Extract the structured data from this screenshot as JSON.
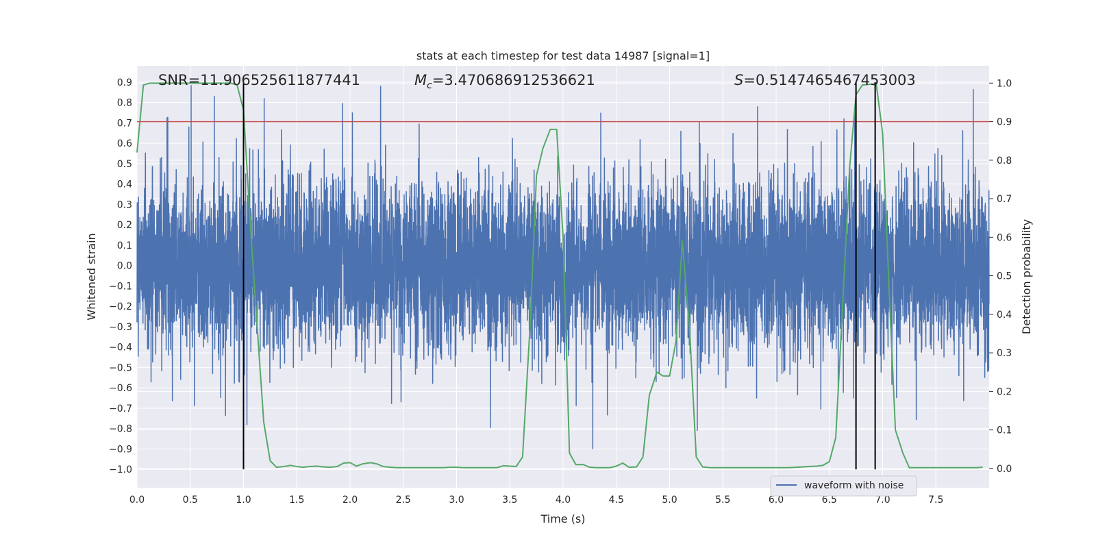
{
  "chart_data": {
    "type": "line",
    "title": "stats at each timestep for test data 14987 [signal=1]",
    "xlabel": "Time (s)",
    "ylabel_left": "Whitened strain",
    "ylabel_right": "Detection probability",
    "xlim": [
      0.0,
      8.0
    ],
    "ylim_left": [
      -1.09,
      0.98
    ],
    "ylim_right": [
      -0.05,
      1.045
    ],
    "x_ticks": [
      "0.0",
      "0.5",
      "1.0",
      "1.5",
      "2.0",
      "2.5",
      "3.0",
      "3.5",
      "4.0",
      "4.5",
      "5.0",
      "5.5",
      "6.0",
      "6.5",
      "7.0",
      "7.5"
    ],
    "y_left_ticks": [
      "0.9",
      "0.8",
      "0.7",
      "0.6",
      "0.5",
      "0.4",
      "0.3",
      "0.2",
      "0.1",
      "0.0",
      "−0.1",
      "−0.2",
      "−0.3",
      "−0.4",
      "−0.5",
      "−0.6",
      "−0.7",
      "−0.8",
      "−0.9",
      "−1.0"
    ],
    "y_right_ticks": [
      "1.0",
      "0.9",
      "0.8",
      "0.7",
      "0.6",
      "0.5",
      "0.4",
      "0.3",
      "0.2",
      "0.1",
      "0.0"
    ],
    "annotations": {
      "snr": "SNR=11.906525611877441",
      "mc_symbol": "M",
      "mc_sub": "c",
      "mc_value": "=3.470686912536621",
      "s_symbol": "S",
      "s_value": "=0.5147465467453003"
    },
    "threshold": {
      "axis": "right",
      "value": 0.9,
      "color": "#c44e52"
    },
    "vertical_lines": {
      "x": [
        1.0,
        6.75,
        6.93
      ],
      "ymin": -1.0,
      "ymax": 0.9,
      "color": "#000000"
    },
    "series": [
      {
        "name": "waveform with noise",
        "axis": "left",
        "color": "#4c72b0",
        "generated": true,
        "noise_sigma": 0.2,
        "n_points": 8000
      },
      {
        "axis": "right",
        "color": "#55a868",
        "x": [
          0.0,
          0.06,
          0.12,
          0.19,
          0.25,
          0.31,
          0.38,
          0.44,
          0.5,
          0.56,
          0.62,
          0.69,
          0.75,
          0.81,
          0.88,
          0.94,
          1.0,
          1.06,
          1.12,
          1.19,
          1.25,
          1.31,
          1.38,
          1.44,
          1.5,
          1.56,
          1.62,
          1.69,
          1.75,
          1.81,
          1.88,
          1.94,
          2.0,
          2.06,
          2.12,
          2.19,
          2.25,
          2.31,
          2.38,
          2.44,
          2.5,
          2.56,
          2.62,
          2.69,
          2.75,
          2.81,
          2.88,
          2.94,
          3.0,
          3.06,
          3.12,
          3.19,
          3.25,
          3.31,
          3.38,
          3.44,
          3.5,
          3.56,
          3.62,
          3.69,
          3.75,
          3.81,
          3.88,
          3.94,
          4.0,
          4.06,
          4.12,
          4.19,
          4.25,
          4.31,
          4.38,
          4.44,
          4.5,
          4.56,
          4.62,
          4.69,
          4.75,
          4.81,
          4.88,
          4.94,
          5.0,
          5.06,
          5.12,
          5.19,
          5.25,
          5.31,
          5.38,
          5.44,
          5.5,
          5.56,
          5.62,
          5.69,
          5.75,
          5.81,
          5.88,
          5.94,
          6.0,
          6.06,
          6.12,
          6.19,
          6.25,
          6.31,
          6.38,
          6.44,
          6.5,
          6.56,
          6.62,
          6.69,
          6.75,
          6.81,
          6.88,
          6.94,
          7.0,
          7.06,
          7.12,
          7.19,
          7.25,
          7.31,
          7.38,
          7.44,
          7.5,
          7.56,
          7.62,
          7.69,
          7.75,
          7.81,
          7.88,
          7.94
        ],
        "values": [
          0.82,
          0.995,
          1.0,
          1.0,
          1.0,
          1.0,
          1.0,
          1.0,
          1.0,
          1.0,
          1.0,
          1.0,
          1.0,
          1.0,
          1.0,
          0.995,
          0.93,
          0.65,
          0.4,
          0.12,
          0.02,
          0.003,
          0.005,
          0.008,
          0.005,
          0.003,
          0.005,
          0.006,
          0.004,
          0.003,
          0.005,
          0.014,
          0.015,
          0.006,
          0.012,
          0.015,
          0.012,
          0.005,
          0.003,
          0.002,
          0.002,
          0.002,
          0.002,
          0.002,
          0.002,
          0.002,
          0.002,
          0.003,
          0.003,
          0.002,
          0.002,
          0.002,
          0.002,
          0.002,
          0.002,
          0.007,
          0.006,
          0.005,
          0.03,
          0.37,
          0.76,
          0.83,
          0.88,
          0.88,
          0.6,
          0.04,
          0.01,
          0.01,
          0.003,
          0.002,
          0.002,
          0.002,
          0.006,
          0.014,
          0.003,
          0.004,
          0.03,
          0.19,
          0.25,
          0.24,
          0.24,
          0.33,
          0.59,
          0.35,
          0.03,
          0.004,
          0.002,
          0.002,
          0.002,
          0.002,
          0.002,
          0.002,
          0.002,
          0.002,
          0.002,
          0.002,
          0.002,
          0.002,
          0.002,
          0.003,
          0.004,
          0.005,
          0.006,
          0.008,
          0.018,
          0.08,
          0.4,
          0.78,
          0.97,
          0.995,
          0.997,
          0.998,
          0.87,
          0.47,
          0.1,
          0.04,
          0.002,
          0.002,
          0.002,
          0.002,
          0.002,
          0.002,
          0.002,
          0.002,
          0.002,
          0.002,
          0.002,
          0.003
        ]
      }
    ],
    "legend": {
      "placement": "lower-center",
      "label": "waveform with noise"
    },
    "grid": true,
    "background": "#eaeaf2"
  }
}
